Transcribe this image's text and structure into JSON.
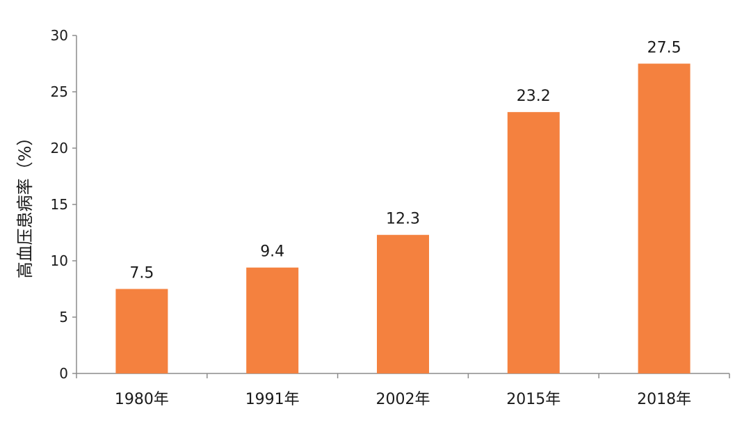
{
  "chart_data": {
    "type": "bar",
    "categories": [
      "1980年",
      "1991年",
      "2002年",
      "2015年",
      "2018年"
    ],
    "values": [
      7.5,
      9.4,
      12.3,
      23.2,
      27.5
    ],
    "data_labels": [
      "7.5",
      "9.4",
      "12.3",
      "23.2",
      "27.5"
    ],
    "title": "",
    "xlabel": "",
    "ylabel": "高血压患病率（%）",
    "ylim": [
      0,
      30
    ],
    "yticks": [
      0,
      5,
      10,
      15,
      20,
      25,
      30
    ],
    "ytick_labels": [
      "0",
      "5",
      "10",
      "15",
      "20",
      "25",
      "30"
    ],
    "grid": false,
    "legend": "none",
    "bar_color": "#F4813F",
    "axis_color": "#8c8c8c"
  }
}
